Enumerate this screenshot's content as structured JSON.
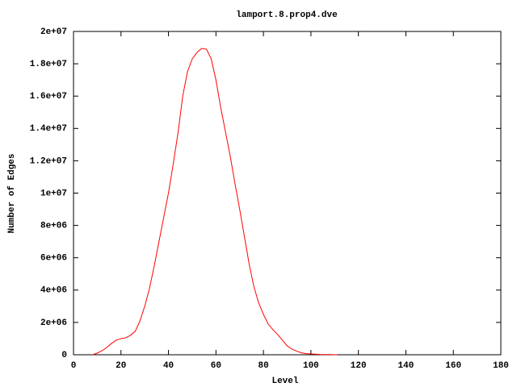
{
  "chart_data": {
    "type": "line",
    "title": "lamport.8.prop4.dve",
    "x_label": "Level",
    "y_label": "Number of Edges",
    "x": [
      8,
      10,
      12,
      14,
      16,
      18,
      20,
      22,
      24,
      26,
      28,
      30,
      32,
      34,
      36,
      38,
      40,
      42,
      44,
      46,
      48,
      50,
      52,
      54,
      56,
      58,
      60,
      62,
      64,
      66,
      68,
      70,
      72,
      74,
      76,
      78,
      80,
      82,
      84,
      86,
      88,
      90,
      92,
      94,
      96,
      98,
      100,
      104,
      108,
      111
    ],
    "series": [
      {
        "color": "#ff0000",
        "values": [
          0,
          100000,
          250000,
          450000,
          700000,
          900000,
          1000000,
          1050000,
          1200000,
          1450000,
          2100000,
          3000000,
          4100000,
          5500000,
          7000000,
          8500000,
          10000000,
          11800000,
          13700000,
          16000000,
          17500000,
          18300000,
          18700000,
          18950000,
          18900000,
          18300000,
          17000000,
          15300000,
          13800000,
          12300000,
          10600000,
          9000000,
          7300000,
          5600000,
          4200000,
          3200000,
          2500000,
          1900000,
          1550000,
          1250000,
          900000,
          550000,
          350000,
          220000,
          120000,
          70000,
          50000,
          20000,
          10000,
          0
        ]
      }
    ],
    "xlim": [
      0,
      180
    ],
    "xticks": [
      0,
      20,
      40,
      60,
      80,
      100,
      120,
      140,
      160,
      180
    ],
    "ylim": [
      0,
      20000000
    ],
    "yticks": [
      0,
      {
        "value": 2000000,
        "label": "2e+06"
      },
      {
        "value": 4000000,
        "label": "4e+06"
      },
      {
        "value": 6000000,
        "label": "6e+06"
      },
      {
        "value": 8000000,
        "label": "8e+06"
      },
      {
        "value": 10000000,
        "label": "1e+07"
      },
      {
        "value": 12000000,
        "label": "1.2e+07"
      },
      {
        "value": 14000000,
        "label": "1.4e+07"
      },
      {
        "value": 16000000,
        "label": "1.6e+07"
      },
      {
        "value": 18000000,
        "label": "1.8e+07"
      },
      {
        "value": 20000000,
        "label": "2e+07"
      }
    ],
    "grid": false
  }
}
